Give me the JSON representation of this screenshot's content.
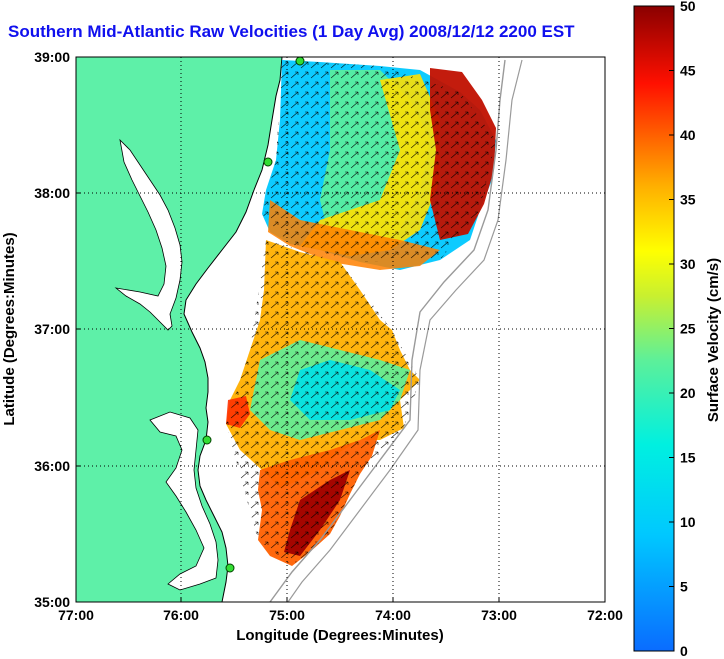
{
  "figure": {
    "title": "Southern Mid-Atlantic Raw Velocities (1 Day Avg) 2008/12/12 2200 EST",
    "xlabel": "Longitude (Degrees:Minutes)",
    "ylabel": "Latitude (Degrees:Minutes)",
    "x_ticks": [
      "77:00",
      "76:00",
      "75:00",
      "74:00",
      "73:00",
      "72:00"
    ],
    "y_ticks": [
      "39:00",
      "38:00",
      "37:00",
      "36:00",
      "35:00"
    ],
    "colorbar": {
      "label": "Surface Velocity (cm/s)",
      "ticks": [
        "50",
        "45",
        "40",
        "35",
        "30",
        "25",
        "20",
        "15",
        "10",
        "5",
        "0"
      ],
      "min": 0,
      "max": 50,
      "units": "cm/s"
    }
  },
  "map": {
    "lon_range": [
      -77,
      -72
    ],
    "lat_range": [
      35,
      39
    ],
    "land_color": "#5ef0a8",
    "water_color": "#ffffff",
    "grid": "dotted",
    "stations": [
      "station-north",
      "station-mid",
      "station-south",
      "station-hatteras"
    ]
  }
}
